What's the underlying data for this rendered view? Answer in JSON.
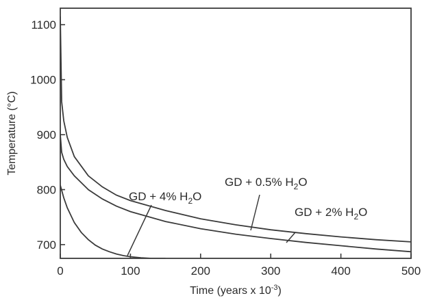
{
  "chart_data": {
    "type": "line",
    "title": "",
    "xlabel": "Time (years x 10",
    "xlabel_sup": "-3",
    "xlabel_end": ")",
    "ylabel": "Temperature (°C)",
    "xlim": [
      0,
      500
    ],
    "ylim": [
      675,
      1130
    ],
    "x_ticks": [
      0,
      100,
      200,
      300,
      400,
      500
    ],
    "y_ticks": [
      700,
      800,
      900,
      1000,
      1100
    ],
    "grid": false,
    "series": [
      {
        "label_parts": [
          "GD + 0.5% H",
          "2",
          "O"
        ],
        "x": [
          0,
          2,
          5,
          10,
          20,
          40,
          60,
          80,
          100,
          150,
          200,
          250,
          300,
          350,
          400,
          450,
          500
        ],
        "y": [
          1115,
          960,
          925,
          895,
          860,
          825,
          805,
          790,
          780,
          762,
          747,
          736,
          727,
          720,
          714,
          709,
          705
        ]
      },
      {
        "label_parts": [
          "GD + 2% H",
          "2",
          "O"
        ],
        "x": [
          0,
          2,
          5,
          10,
          20,
          40,
          60,
          80,
          100,
          150,
          200,
          250,
          300,
          350,
          400,
          450,
          500
        ],
        "y": [
          900,
          868,
          855,
          842,
          825,
          800,
          783,
          770,
          760,
          742,
          729,
          719,
          711,
          704,
          698,
          692,
          687
        ]
      },
      {
        "label_parts": [
          "GD + 4% H",
          "2",
          "O"
        ],
        "x": [
          0,
          5,
          10,
          20,
          30,
          40,
          50,
          60,
          70,
          80,
          90,
          100,
          115,
          130,
          150
        ],
        "y": [
          808,
          785,
          767,
          740,
          722,
          709,
          699,
          692,
          687,
          683,
          680,
          678,
          676,
          675,
          675
        ]
      }
    ]
  }
}
